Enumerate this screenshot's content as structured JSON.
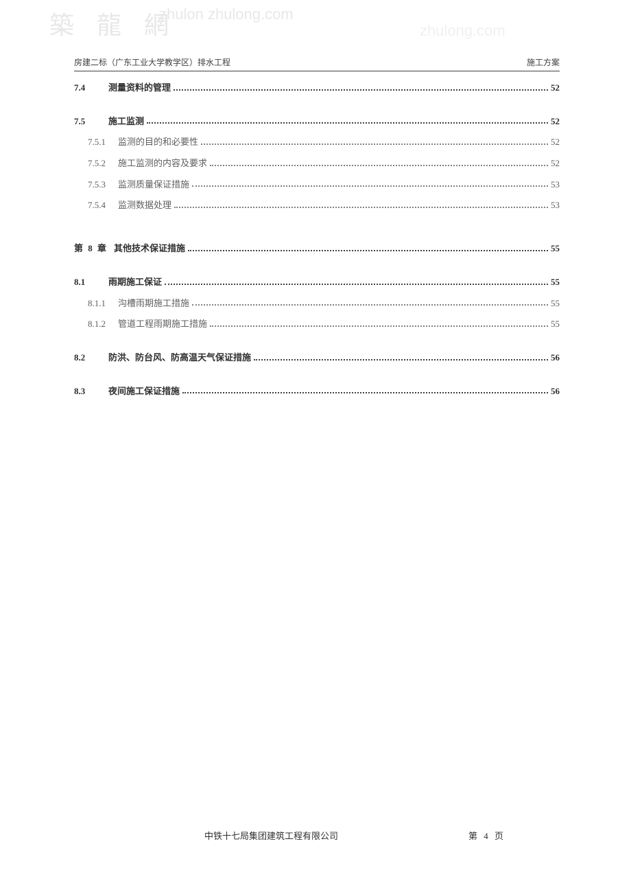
{
  "watermarks": {
    "top_left": "築 龍 網",
    "top_center": "zhulon zhulong.com",
    "top_right": "zhulong.com"
  },
  "header": {
    "left": "房建二标（广东工业大学教学区）排水工程",
    "right": "施工方案"
  },
  "toc": [
    {
      "type": "level2",
      "num": "7.4",
      "title": "测量资料的管理",
      "page": "52",
      "bold": true
    },
    {
      "type": "gap"
    },
    {
      "type": "level2",
      "num": "7.5",
      "title": "施工监测",
      "page": "52",
      "bold": true
    },
    {
      "type": "level3",
      "num": "7.5.1",
      "title": "监测的目的和必要性",
      "page": "52"
    },
    {
      "type": "level3",
      "num": "7.5.2",
      "title": "施工监测的内容及要求",
      "page": "52"
    },
    {
      "type": "level3",
      "num": "7.5.3",
      "title": "监测质量保证措施",
      "page": "53"
    },
    {
      "type": "level3",
      "num": "7.5.4",
      "title": "监测数据处理",
      "page": "53"
    },
    {
      "type": "biggap"
    },
    {
      "type": "chapter",
      "num": "第 8 章",
      "title": "其他技术保证措施",
      "page": "55",
      "bold": true
    },
    {
      "type": "gap"
    },
    {
      "type": "level2",
      "num": "8.1",
      "title": "雨期施工保证",
      "page": "55",
      "bold": true
    },
    {
      "type": "level3",
      "num": "8.1.1",
      "title": "沟槽雨期施工措施",
      "page": "55"
    },
    {
      "type": "level3",
      "num": "8.1.2",
      "title": "管道工程雨期施工措施",
      "page": "55"
    },
    {
      "type": "gap"
    },
    {
      "type": "level2",
      "num": "8.2",
      "title": "防洪、防台风、防高温天气保证措施",
      "page": "56",
      "bold": true
    },
    {
      "type": "gap"
    },
    {
      "type": "level2",
      "num": "8.3",
      "title": "夜间施工保证措施",
      "page": "56",
      "bold": true
    }
  ],
  "footer": {
    "company": "中铁十七局集团建筑工程有限公司",
    "page_label": "第 4 页"
  },
  "colors": {
    "background": "#ffffff",
    "text_main": "#303030",
    "text_sub": "#606060",
    "watermark": "#e8e8e8",
    "border": "#404040"
  }
}
